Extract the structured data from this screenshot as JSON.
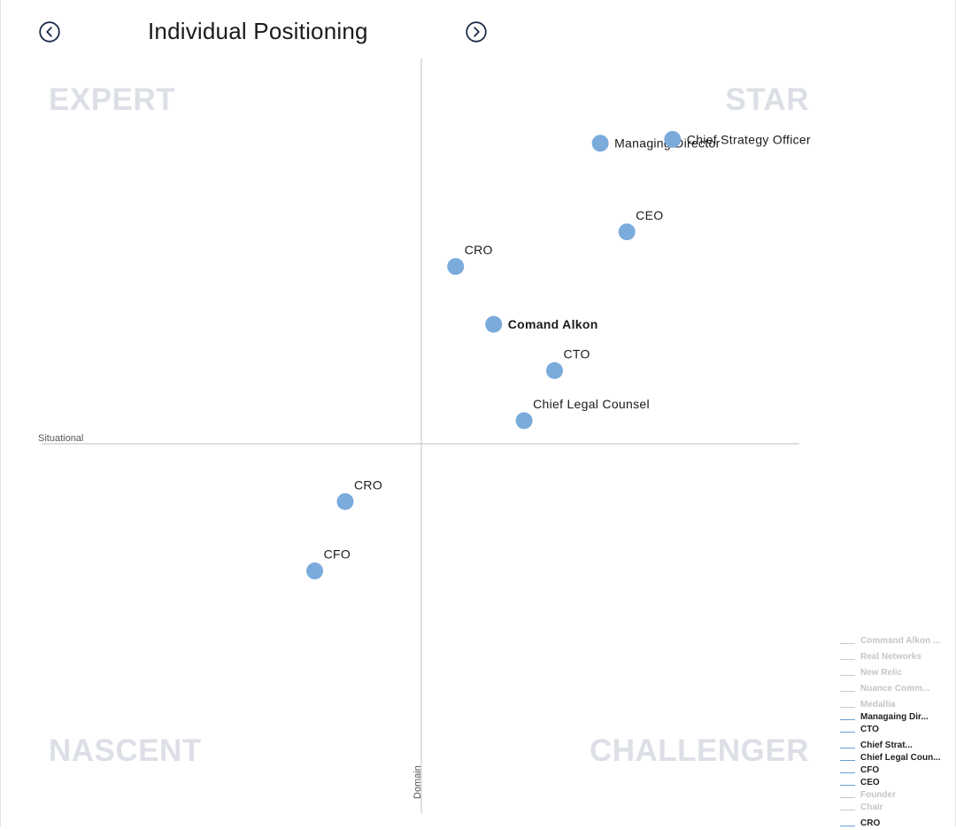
{
  "header": {
    "title": "Individual Positioning",
    "prev_icon": "chevron-left-circle-icon",
    "next_icon": "chevron-right-circle-icon"
  },
  "quadrants": {
    "top_left": "EXPERT",
    "top_right": "STAR",
    "bottom_left": "NASCENT",
    "bottom_right": "CHALLENGER"
  },
  "axes": {
    "x_label": "Situational",
    "y_label": "Domain"
  },
  "colors": {
    "point": "#7aabdb",
    "axis": "#cccccc",
    "quadrant_text": "#dcdfe6",
    "legend_active": "#6aa0d4",
    "legend_inactive": "#c9c9c9"
  },
  "chart_data": {
    "type": "scatter",
    "title": "Individual Positioning",
    "xlabel": "Situational",
    "ylabel": "Domain",
    "xlim": [
      -100,
      100
    ],
    "ylim": [
      -100,
      100
    ],
    "grid": false,
    "legend": "bottom-right",
    "points": [
      {
        "label": "Managing Director",
        "x": 47,
        "y": 78,
        "bold": false,
        "label_pos": "right"
      },
      {
        "label": "Chief Strategy Officer",
        "x": 66,
        "y": 79,
        "bold": false,
        "label_pos": "right"
      },
      {
        "label": "CEO",
        "x": 54,
        "y": 55,
        "bold": false,
        "label_pos": "above"
      },
      {
        "label": "CRO",
        "x": 9,
        "y": 46,
        "bold": false,
        "label_pos": "above"
      },
      {
        "label": "Comand Alkon",
        "x": 19,
        "y": 31,
        "bold": true,
        "label_pos": "right"
      },
      {
        "label": "CTO",
        "x": 35,
        "y": 19,
        "bold": false,
        "label_pos": "above"
      },
      {
        "label": "Chief Legal Counsel",
        "x": 27,
        "y": 6,
        "bold": false,
        "label_pos": "above"
      },
      {
        "label": "CRO",
        "x": -20,
        "y": -15,
        "bold": false,
        "label_pos": "above"
      },
      {
        "label": "CFO",
        "x": -28,
        "y": -33,
        "bold": false,
        "label_pos": "above"
      }
    ]
  },
  "legend": {
    "items": [
      {
        "label": "Command Alkon ...",
        "active": false,
        "compact": false
      },
      {
        "label": "Real Networks",
        "active": false,
        "compact": false
      },
      {
        "label": "New Relic",
        "active": false,
        "compact": false
      },
      {
        "label": "Nuance Comm...",
        "active": false,
        "compact": false
      },
      {
        "label": "Medallia",
        "active": false,
        "compact": true
      },
      {
        "label": "Managaing Dir...",
        "active": true,
        "compact": true
      },
      {
        "label": "CTO",
        "active": true,
        "compact": false
      },
      {
        "label": "Chief Strat...",
        "active": true,
        "compact": true
      },
      {
        "label": "Chief Legal Coun...",
        "active": true,
        "compact": true
      },
      {
        "label": "CFO",
        "active": true,
        "compact": true
      },
      {
        "label": "CEO",
        "active": true,
        "compact": true
      },
      {
        "label": "Founder",
        "active": false,
        "compact": true
      },
      {
        "label": "Chair",
        "active": false,
        "compact": false
      },
      {
        "label": "CRO",
        "active": true,
        "compact": true
      }
    ]
  }
}
